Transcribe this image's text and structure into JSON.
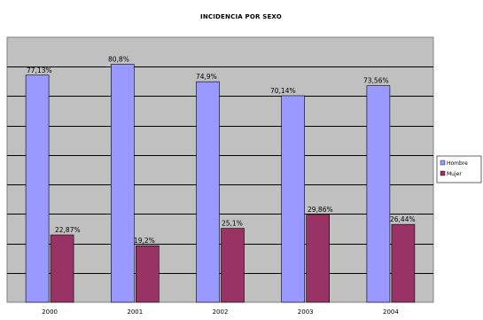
{
  "chart_data": {
    "type": "bar",
    "title": "INCIDENCIA POR SEXO",
    "xlabel": "",
    "ylabel": "",
    "categories": [
      "2000",
      "2001",
      "2002",
      "2003",
      "2004"
    ],
    "series": [
      {
        "name": "Hombre",
        "values": [
          77.13,
          80.8,
          74.9,
          70.14,
          73.56
        ],
        "labels": [
          "77,13%",
          "80,8%",
          "74,9%",
          "70,14%",
          "73,56%"
        ],
        "color": "#9999FF"
      },
      {
        "name": "Mujer",
        "values": [
          22.87,
          19.2,
          25.1,
          29.86,
          26.44
        ],
        "labels": [
          "22,87%",
          "19,2%",
          "25,1%",
          "29,86%",
          "26,44%"
        ],
        "color": "#993366"
      }
    ],
    "ylim": [
      0,
      90
    ],
    "ytick_step": 10,
    "grid": true,
    "plot_background": "#C0C0C0",
    "legend_position": "right"
  }
}
